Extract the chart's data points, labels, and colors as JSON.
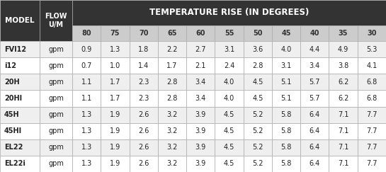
{
  "title": "TEMPERATURE RISE (IN DEGREES)",
  "col_headers": [
    "80",
    "75",
    "70",
    "65",
    "60",
    "55",
    "50",
    "45",
    "40",
    "35",
    "30"
  ],
  "models": [
    "FVI12",
    "i12",
    "20H",
    "20HI",
    "45H",
    "45HI",
    "EL22",
    "EL22i"
  ],
  "flow": [
    "gpm",
    "gpm",
    "gpm",
    "gpm",
    "gpm",
    "gpm",
    "gpm",
    "gpm"
  ],
  "data": [
    [
      0.9,
      1.3,
      1.8,
      2.2,
      2.7,
      3.1,
      3.6,
      4.0,
      4.4,
      4.9,
      5.3
    ],
    [
      0.7,
      1.0,
      1.4,
      1.7,
      2.1,
      2.4,
      2.8,
      3.1,
      3.4,
      3.8,
      4.1
    ],
    [
      1.1,
      1.7,
      2.3,
      2.8,
      3.4,
      4.0,
      4.5,
      5.1,
      5.7,
      6.2,
      6.8
    ],
    [
      1.1,
      1.7,
      2.3,
      2.8,
      3.4,
      4.0,
      4.5,
      5.1,
      5.7,
      6.2,
      6.8
    ],
    [
      1.3,
      1.9,
      2.6,
      3.2,
      3.9,
      4.5,
      5.2,
      5.8,
      6.4,
      7.1,
      7.7
    ],
    [
      1.3,
      1.9,
      2.6,
      3.2,
      3.9,
      4.5,
      5.2,
      5.8,
      6.4,
      7.1,
      7.7
    ],
    [
      1.3,
      1.9,
      2.6,
      3.2,
      3.9,
      4.5,
      5.2,
      5.8,
      6.4,
      7.1,
      7.7
    ],
    [
      1.3,
      1.9,
      2.6,
      3.2,
      3.9,
      4.5,
      5.2,
      5.8,
      6.4,
      7.1,
      7.7
    ]
  ],
  "header_bg": "#333333",
  "header_text_color": "#ffffff",
  "subheader_bg": "#cccccc",
  "subheader_text_color": "#333333",
  "row_bg_even": "#efefef",
  "row_bg_odd": "#ffffff",
  "border_color": "#aaaaaa",
  "text_color": "#222222",
  "figsize": [
    5.45,
    2.43
  ],
  "dpi": 100
}
